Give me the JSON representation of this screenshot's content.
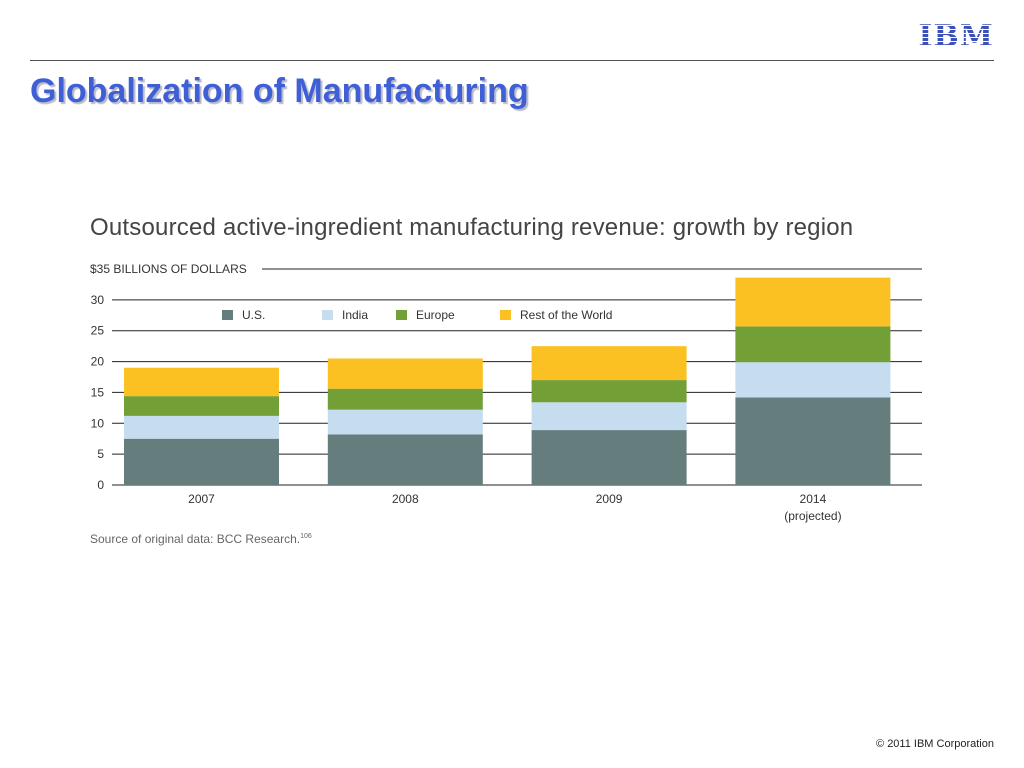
{
  "header": {
    "logo_text": "IBM",
    "title": "Globalization of Manufacturing"
  },
  "footer": {
    "copyright": "© 2011 IBM Corporation"
  },
  "source": {
    "text": "Source of original data: BCC Research.",
    "footnote": "106"
  },
  "chart_data": {
    "type": "bar",
    "stacked": true,
    "title": "Outsourced active-ingredient manufacturing revenue: growth by region",
    "ylabel": "$35 BILLIONS OF DOLLARS",
    "ylim": [
      0,
      35
    ],
    "yticks": [
      0,
      5,
      10,
      15,
      20,
      25,
      30
    ],
    "grid": true,
    "legend_position": "top-left",
    "categories": [
      "2007",
      "2008",
      "2009",
      "2014"
    ],
    "category_sublabels": [
      "",
      "",
      "",
      "(projected)"
    ],
    "series": [
      {
        "name": "U.S.",
        "color": "#667d7d",
        "values": [
          7.5,
          8.2,
          8.9,
          14.2
        ]
      },
      {
        "name": "India",
        "color": "#c6ddf0",
        "values": [
          3.7,
          4.0,
          4.5,
          5.7
        ]
      },
      {
        "name": "Europe",
        "color": "#72a036",
        "values": [
          3.2,
          3.4,
          3.6,
          5.8
        ]
      },
      {
        "name": "Rest of the World",
        "color": "#fbc021",
        "values": [
          4.6,
          4.9,
          5.5,
          7.9
        ]
      }
    ]
  }
}
